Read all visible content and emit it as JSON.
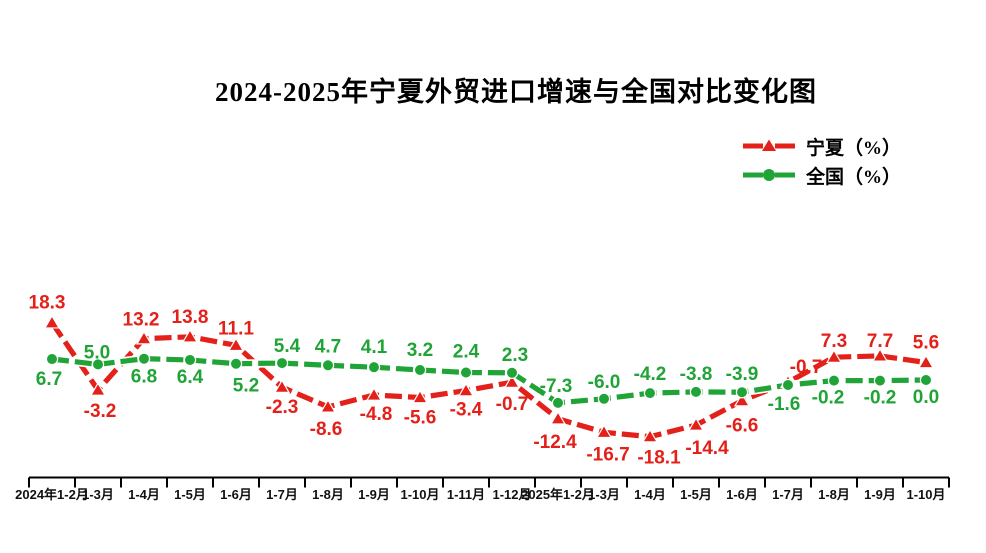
{
  "title": "2024-2025年宁夏外贸进口增速与全国对比变化图",
  "legend": [
    {
      "label": "宁夏（%）"
    },
    {
      "label": "全国（%）"
    }
  ],
  "axis_color": "#000000",
  "background": "#ffffff",
  "chart_data": {
    "type": "line",
    "title": "2024-2025年宁夏外贸进口增速与全国对比变化图",
    "xlabel": "",
    "ylabel": "",
    "ylim": [
      -31,
      31
    ],
    "grid": false,
    "y_axis_visible": false,
    "legend_position": "top-right",
    "categories": [
      "2024年1-2月",
      "1-3月",
      "1-4月",
      "1-5月",
      "1-6月",
      "1-7月",
      "1-8月",
      "1-9月",
      "1-10月",
      "1-11月",
      "1-12月",
      "2025年1-2月",
      "1-3月",
      "1-4月",
      "1-5月",
      "1-6月",
      "1-7月",
      "1-8月",
      "1-9月",
      "1-10月"
    ],
    "series": [
      {
        "key": "ningxia",
        "name": "宁夏（%）",
        "color": "#e32019",
        "marker": "triangle",
        "values": [
          18.3,
          -3.2,
          13.2,
          13.8,
          11.1,
          -2.3,
          -8.6,
          -4.8,
          -5.6,
          -3.4,
          -0.7,
          -12.4,
          -16.7,
          -18.1,
          -14.4,
          -6.6,
          -0.7,
          7.3,
          7.7,
          5.6
        ],
        "label_offsets": [
          [
            -5,
            -14
          ],
          [
            2,
            27
          ],
          [
            -3,
            -13
          ],
          [
            0,
            -14
          ],
          [
            0,
            -11
          ],
          [
            0,
            26
          ],
          [
            -2,
            28
          ],
          [
            2,
            25
          ],
          [
            0,
            26
          ],
          [
            0,
            25
          ],
          [
            0,
            28
          ],
          [
            -3,
            29
          ],
          [
            4,
            28
          ],
          [
            9,
            27
          ],
          [
            11,
            29
          ],
          [
            0,
            31
          ],
          [
            18,
            -9
          ],
          [
            0,
            -10
          ],
          [
            0,
            -9
          ],
          [
            0,
            -14
          ]
        ]
      },
      {
        "key": "quanguo",
        "name": "全国（%）",
        "color": "#21a437",
        "marker": "circle",
        "values": [
          6.7,
          5.0,
          6.8,
          6.4,
          5.2,
          5.4,
          4.7,
          4.1,
          3.2,
          2.4,
          2.3,
          -7.3,
          -6.0,
          -4.2,
          -3.8,
          -3.9,
          -1.6,
          -0.2,
          -0.2,
          0.0
        ],
        "label_offsets": [
          [
            -3,
            26
          ],
          [
            -1,
            -6
          ],
          [
            0,
            24
          ],
          [
            0,
            23
          ],
          [
            10,
            28
          ],
          [
            5,
            -11
          ],
          [
            0,
            -13
          ],
          [
            0,
            -14
          ],
          [
            0,
            -14
          ],
          [
            0,
            -15
          ],
          [
            3,
            -12
          ],
          [
            -2,
            -11
          ],
          [
            0,
            -11
          ],
          [
            0,
            -13
          ],
          [
            0,
            -12
          ],
          [
            0,
            -12
          ],
          [
            -4,
            25
          ],
          [
            -6,
            23
          ],
          [
            0,
            23
          ],
          [
            0,
            23
          ]
        ]
      }
    ]
  }
}
